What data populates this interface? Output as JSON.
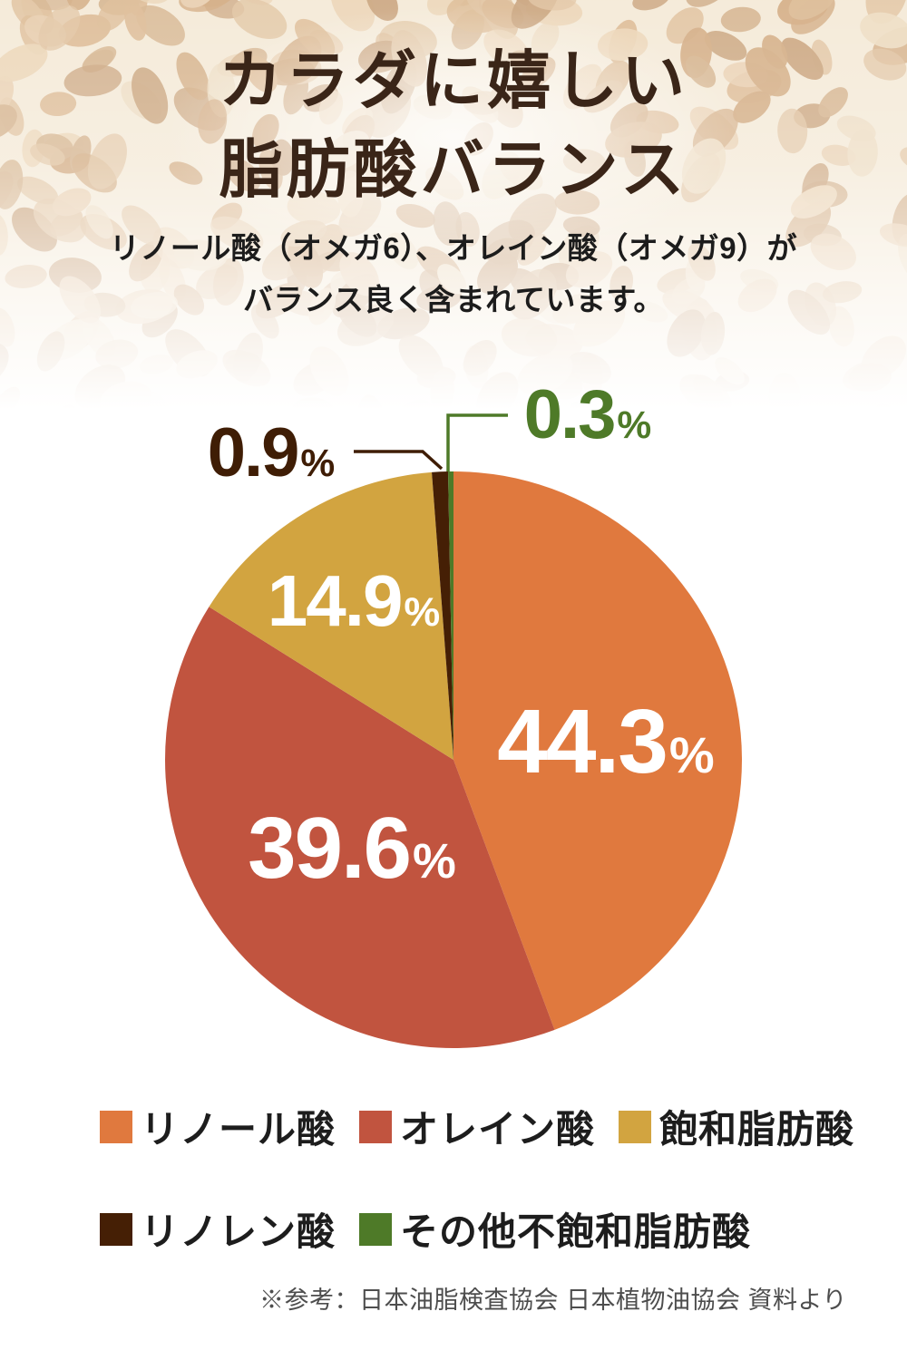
{
  "page": {
    "title_line1": "カラダに嬉しい",
    "title_line2": "脂肪酸バランス",
    "subtitle_line1": "リノール酸（オメガ6）、オレイン酸（オメガ9）が",
    "subtitle_line2": "バランス良く含まれています。",
    "footnote": "※参考：日本油脂検査協会 日本植物油協会 資料より"
  },
  "colors": {
    "title_text": "#3a2518",
    "subtitle_text": "#1c1c1c",
    "footnote_text": "#4d4d4d",
    "callout_dark_brown": "#3f1d05",
    "callout_green": "#4e7a28",
    "pie_label_white": "#ffffff"
  },
  "chart_data": {
    "type": "pie",
    "title": "カラダに嬉しい脂肪酸バランス",
    "unit": "%",
    "direction": "clockwise",
    "start_angle": "12-o'clock",
    "legend_position": "bottom",
    "slices": [
      {
        "label": "リノール酸",
        "value": 44.3,
        "display": "44.3",
        "suffix": "%",
        "color": "#e0793e",
        "label_style": "inside-white"
      },
      {
        "label": "オレイン酸",
        "value": 39.6,
        "display": "39.6",
        "suffix": "%",
        "color": "#c1543f",
        "label_style": "inside-white"
      },
      {
        "label": "飽和脂肪酸",
        "value": 14.9,
        "display": "14.9",
        "suffix": "%",
        "color": "#d2a440",
        "label_style": "inside-white"
      },
      {
        "label": "リノレン酸",
        "value": 0.9,
        "display": "0.9",
        "suffix": "%",
        "color": "#451f05",
        "label_style": "callout-dark-brown"
      },
      {
        "label": "その他不飽和脂肪酸",
        "value": 0.3,
        "display": "0.3",
        "suffix": "%",
        "color": "#4e7a28",
        "label_style": "callout-green"
      }
    ],
    "source_note": "※参考：日本油脂検査協会 日本植物油協会 資料より"
  }
}
